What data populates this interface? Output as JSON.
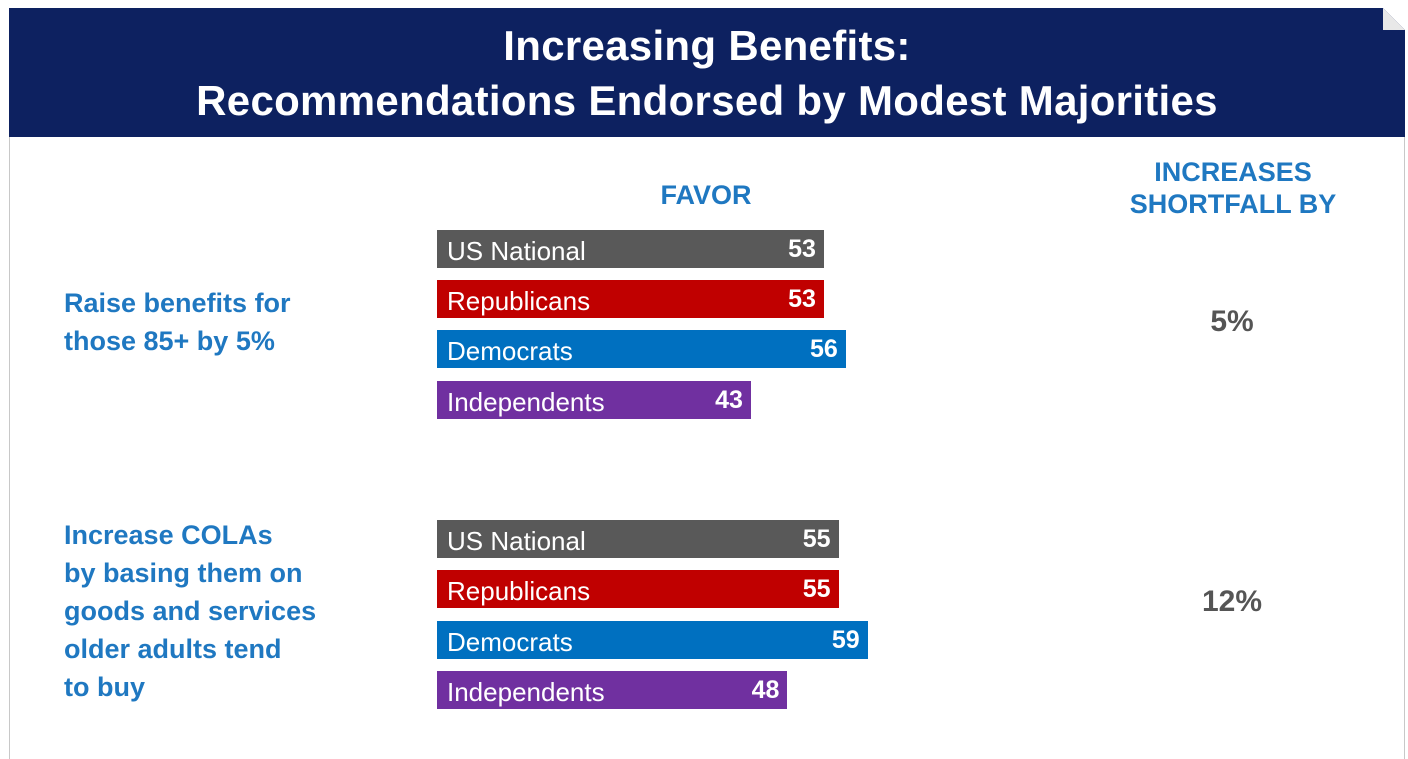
{
  "title": {
    "line1": "Increasing Benefits:",
    "line2": "Recommendations Endorsed by Modest Majorities"
  },
  "headers": {
    "favor": "FAVOR",
    "shortfall_line1": "INCREASES",
    "shortfall_line2": "SHORTFALL BY"
  },
  "colors": {
    "banner": "#0d2160",
    "accent_text": "#1f78c1",
    "US National": "#595959",
    "Republicans": "#c00000",
    "Democrats": "#0070c0",
    "Independents": "#7030a0"
  },
  "chart_data": {
    "type": "bar",
    "orientation": "horizontal",
    "title": "Increasing Benefits: Recommendations Endorsed by Modest Majorities",
    "value_label": "FAVOR",
    "groups": [
      {
        "recommendation_lines": [
          "Raise benefits for",
          "those 85+ by 5%"
        ],
        "increases_shortfall_by": "5%",
        "categories": [
          "US National",
          "Republicans",
          "Democrats",
          "Independents"
        ],
        "values": [
          53,
          53,
          56,
          43
        ]
      },
      {
        "recommendation_lines": [
          "Increase COLAs",
          "by basing them on",
          "goods and services",
          "older adults tend",
          "to buy"
        ],
        "increases_shortfall_by": "12%",
        "categories": [
          "US National",
          "Republicans",
          "Democrats",
          "Independents"
        ],
        "values": [
          55,
          55,
          59,
          48
        ]
      }
    ]
  }
}
